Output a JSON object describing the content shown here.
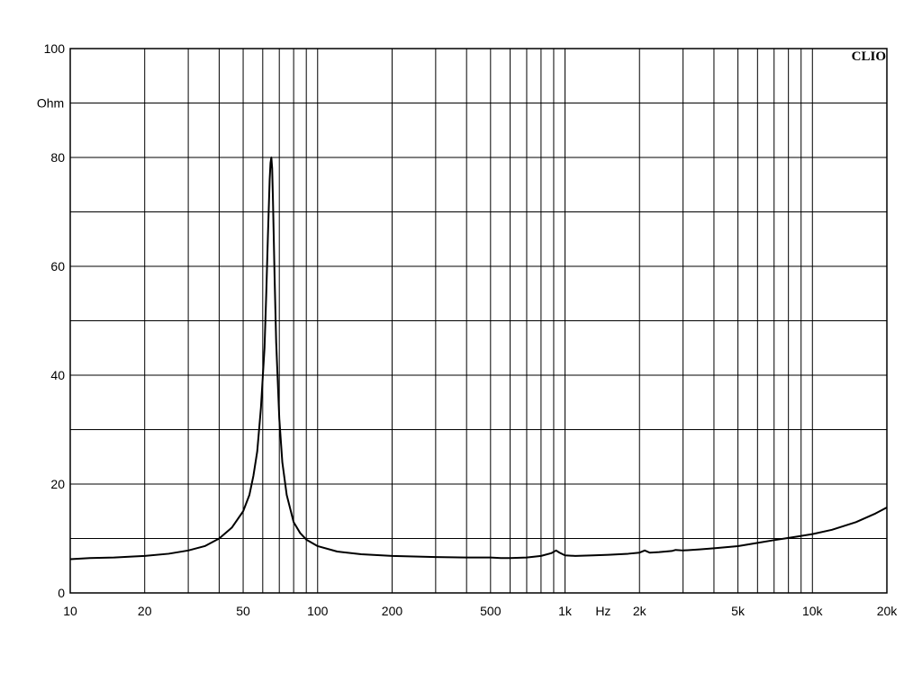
{
  "chart_data": {
    "type": "line",
    "title": "",
    "brand_label": "CLIO",
    "xlabel": "Hz",
    "ylabel": "Ohm",
    "x_scale": "log",
    "xlim": [
      10,
      20000
    ],
    "ylim": [
      0,
      100
    ],
    "grid": true,
    "x_tick_labels": [
      {
        "value": 10,
        "label": "10"
      },
      {
        "value": 20,
        "label": "20"
      },
      {
        "value": 50,
        "label": "50"
      },
      {
        "value": 100,
        "label": "100"
      },
      {
        "value": 200,
        "label": "200"
      },
      {
        "value": 500,
        "label": "500"
      },
      {
        "value": 1000,
        "label": "1k"
      },
      {
        "value": 2000,
        "label": "2k"
      },
      {
        "value": 5000,
        "label": "5k"
      },
      {
        "value": 10000,
        "label": "10k"
      },
      {
        "value": 20000,
        "label": "20k"
      }
    ],
    "y_tick_labels": [
      {
        "value": 0,
        "label": "0"
      },
      {
        "value": 20,
        "label": "20"
      },
      {
        "value": 40,
        "label": "40"
      },
      {
        "value": 60,
        "label": "60"
      },
      {
        "value": 80,
        "label": "80"
      },
      {
        "value": 100,
        "label": "100"
      }
    ],
    "series": [
      {
        "color": "#000000",
        "x": [
          10,
          12,
          15,
          18,
          20,
          25,
          30,
          35,
          40,
          45,
          50,
          53,
          55,
          57,
          59,
          61,
          62,
          63,
          64,
          64.5,
          65,
          65.5,
          66,
          67,
          68,
          70,
          72,
          75,
          80,
          85,
          90,
          100,
          120,
          150,
          200,
          300,
          400,
          500,
          550,
          600,
          700,
          800,
          880,
          920,
          950,
          1000,
          1100,
          1300,
          1500,
          1800,
          2000,
          2100,
          2200,
          2400,
          2700,
          2800,
          3000,
          3500,
          4000,
          5000,
          6000,
          7000,
          8000,
          10000,
          12000,
          15000,
          18000,
          20000
        ],
        "y": [
          6.2,
          6.4,
          6.5,
          6.7,
          6.8,
          7.2,
          7.8,
          8.6,
          10.0,
          12.0,
          15.0,
          18.0,
          21.5,
          26.0,
          34.0,
          45.0,
          55.0,
          66.0,
          76.0,
          79.0,
          80.0,
          78.0,
          72.0,
          58.0,
          46.0,
          32.0,
          24.0,
          18.0,
          13.0,
          11.0,
          9.8,
          8.6,
          7.6,
          7.1,
          6.8,
          6.6,
          6.5,
          6.5,
          6.4,
          6.4,
          6.5,
          6.8,
          7.3,
          7.8,
          7.4,
          6.9,
          6.8,
          6.9,
          7.0,
          7.2,
          7.4,
          7.8,
          7.4,
          7.5,
          7.7,
          7.9,
          7.8,
          8.0,
          8.2,
          8.6,
          9.2,
          9.7,
          10.1,
          10.8,
          11.6,
          13.0,
          14.6,
          15.7
        ]
      }
    ]
  }
}
